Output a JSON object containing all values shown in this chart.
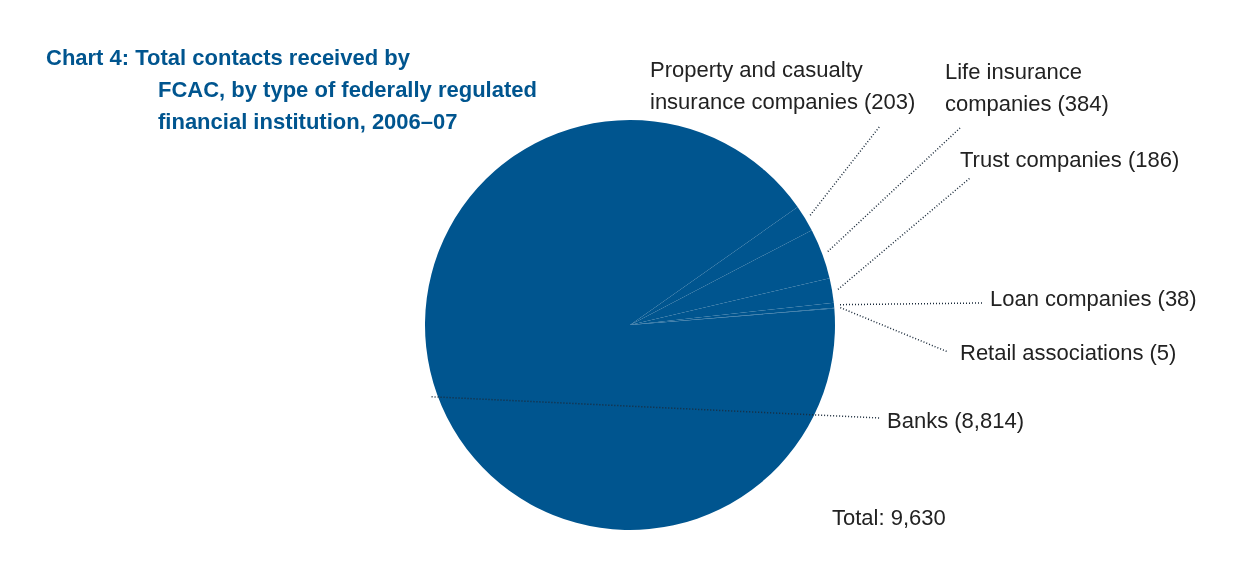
{
  "chart_data": {
    "type": "pie",
    "title": "Chart 4: Total contacts received by FCAC, by type of federally regulated financial institution, 2006–07",
    "categories": [
      "Banks (8,814)",
      "Property and casualty insurance companies (203)",
      "Life insurance companies (384)",
      "Trust companies (186)",
      "Loan companies (38)",
      "Retail associations (5)"
    ],
    "values": [
      8814,
      203,
      384,
      186,
      38,
      5
    ],
    "colors": [
      "#00558f",
      "#00558f",
      "#00558f",
      "#00558f",
      "#00558f",
      "#00558f"
    ],
    "annotations": [
      "Total: 9,630"
    ]
  }
}
